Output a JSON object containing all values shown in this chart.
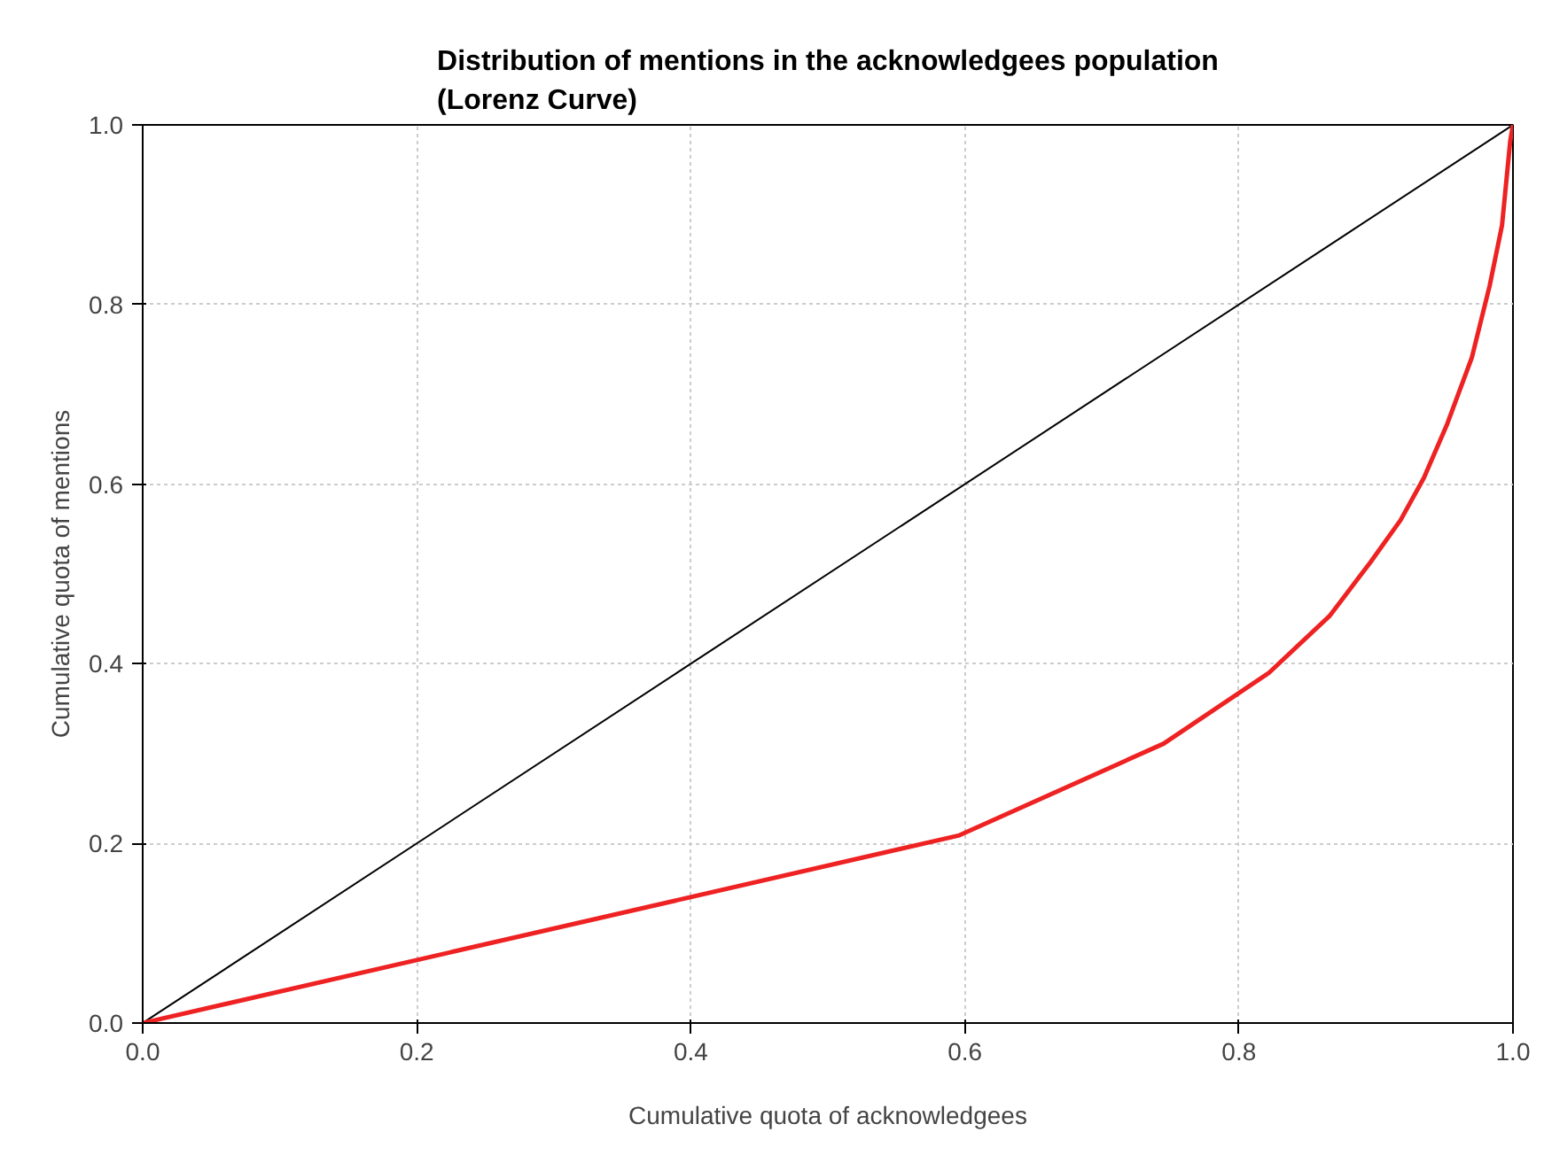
{
  "chart_data": {
    "type": "line",
    "title": "Distribution of mentions in the acknowledgees population\n(Lorenz Curve)",
    "xlabel": "Cumulative quota of acknowledgees",
    "ylabel": "Cumulative quota of mentions",
    "series": [
      {
        "color": "#000000",
        "x": [
          0,
          1
        ],
        "values": [
          0,
          1
        ]
      },
      {
        "color": "#ee2222",
        "x": [
          0,
          0.596,
          0.745,
          0.822,
          0.866,
          0.896,
          0.918,
          0.935,
          0.952,
          0.97,
          0.983,
          0.992,
          0.998,
          1
        ],
        "values": [
          0,
          0.209,
          0.311,
          0.39,
          0.453,
          0.513,
          0.56,
          0.607,
          0.667,
          0.741,
          0.821,
          0.888,
          0.982,
          1
        ]
      }
    ],
    "xlim": [
      0,
      1
    ],
    "ylim": [
      0,
      1
    ],
    "xticks": [
      {
        "value": 0,
        "label": "0.0"
      },
      0.2,
      0.4,
      0.6,
      0.8,
      {
        "value": 1,
        "label": "1.0"
      }
    ],
    "yticks": [
      {
        "value": 0,
        "label": "0.0"
      },
      0.2,
      0.4,
      0.6,
      0.8,
      {
        "value": 1,
        "label": "1.0"
      }
    ],
    "grid": true,
    "line_style": "solid"
  }
}
